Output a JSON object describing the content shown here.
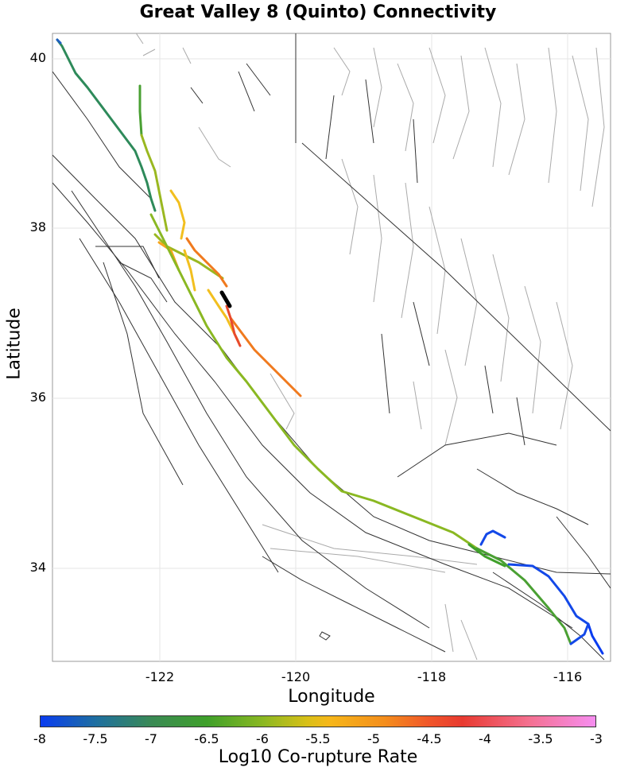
{
  "title": "Great Valley 8 (Quinto) Connectivity",
  "map": {
    "xlabel": "Longitude",
    "ylabel": "Latitude",
    "x_ticks": [
      "-122",
      "-120",
      "-118",
      "-116"
    ],
    "y_ticks": [
      "40",
      "38",
      "36",
      "34"
    ],
    "lon_range": [
      -123.6,
      -115.4
    ],
    "lat_range": [
      32.9,
      40.3
    ],
    "colors": {
      "background_fault": "#333333",
      "fault_trace": "#999999",
      "target_section": "#000000"
    }
  },
  "colorbar": {
    "label": "Log10 Co-rupture Rate",
    "ticks": [
      "-8",
      "-7.5",
      "-7",
      "-6.5",
      "-6",
      "-5.5",
      "-5",
      "-4.5",
      "-4",
      "-3.5",
      "-3"
    ],
    "range": [
      -8,
      -3
    ]
  }
}
